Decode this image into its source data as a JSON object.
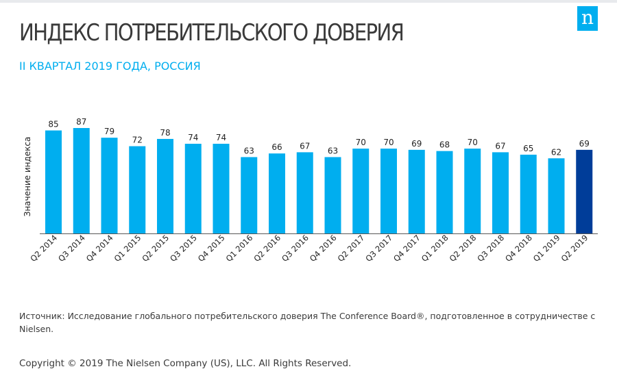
{
  "header": {
    "title": "ИНДЕКС ПОТРЕБИТЕЛЬСКОГО ДОВЕРИЯ",
    "subtitle": "II КВАРТАЛ 2019 ГОДА, РОССИЯ",
    "logo_text": "n"
  },
  "colors": {
    "bar": "#00aeef",
    "highlight_bar": "#003d99",
    "axis": "#555555",
    "title": "#3a3a3a",
    "accent": "#00aeef"
  },
  "chart_data": {
    "type": "bar",
    "title": "ИНДЕКС ПОТРЕБИТЕЛЬСКОГО ДОВЕРИЯ",
    "subtitle": "II КВАРТАЛ 2019 ГОДА, РОССИЯ",
    "xlabel": "",
    "ylabel": "Значение индекса",
    "categories": [
      "Q2 2014",
      "Q3 2014",
      "Q4 2014",
      "Q1 2015",
      "Q2 2015",
      "Q3 2015",
      "Q4 2015",
      "Q1 2016",
      "Q2 2016",
      "Q3 2016",
      "Q4 2016",
      "Q2 2017",
      "Q3 2017",
      "Q4 2017",
      "Q1 2018",
      "Q2 2018",
      "Q3 2018",
      "Q4 2018",
      "Q1 2019",
      "Q2 2019"
    ],
    "values": [
      85,
      87,
      79,
      72,
      78,
      74,
      74,
      63,
      66,
      67,
      63,
      70,
      70,
      69,
      68,
      70,
      67,
      65,
      62,
      69
    ],
    "highlight_index": 19,
    "ylim": [
      0,
      87
    ],
    "grid": false,
    "data_labels": true
  },
  "footer": {
    "source": "Источник: Исследование глобального потребительского доверия The Conference Board®, подготовленное в сотрудничестве с Nielsen.",
    "copyright": "Copyright © 2019 The Nielsen Company (US), LLC. All Rights Reserved."
  }
}
